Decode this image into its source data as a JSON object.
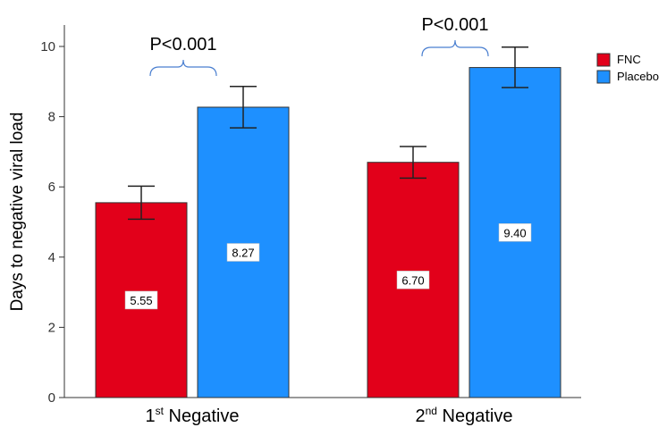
{
  "chart_data": {
    "type": "bar",
    "title": "",
    "xlabel": "",
    "ylabel": "Days to negative viral load",
    "ylim": [
      0,
      10
    ],
    "yticks": [
      "0",
      "2",
      "4",
      "6",
      "8",
      "10"
    ],
    "categories": [
      {
        "base": "1",
        "sup": "st",
        "rest": " Negative"
      },
      {
        "base": "2",
        "sup": "nd",
        "rest": " Negative"
      }
    ],
    "series": [
      {
        "name": "FNC",
        "color": "#e2001a",
        "values": [
          5.55,
          6.7
        ],
        "labels": [
          "5.55",
          "6.70"
        ],
        "err_low": [
          5.08,
          6.25
        ],
        "err_high": [
          6.02,
          7.15
        ]
      },
      {
        "name": "Placebo",
        "color": "#1e90ff",
        "values": [
          8.27,
          9.4
        ],
        "labels": [
          "8.27",
          "9.40"
        ],
        "err_low": [
          7.68,
          8.83
        ],
        "err_high": [
          8.86,
          9.98
        ]
      }
    ],
    "annotations": [
      "P<0.001",
      "P<0.001"
    ],
    "legend": {
      "position": "right",
      "entries": [
        "FNC",
        "Placebo"
      ]
    },
    "grid": false
  }
}
